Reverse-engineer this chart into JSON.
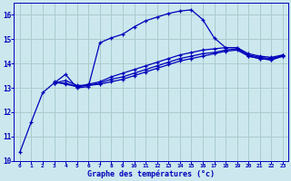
{
  "xlabel": "Graphe des températures (°c)",
  "background_color": "#cce8ee",
  "grid_color": "#aacccc",
  "line_color": "#0000bb",
  "ylim": [
    10,
    16.5
  ],
  "xlim": [
    -0.5,
    23.5
  ],
  "yticks": [
    10,
    11,
    12,
    13,
    14,
    15,
    16
  ],
  "xticks": [
    0,
    1,
    2,
    3,
    4,
    5,
    6,
    7,
    8,
    9,
    10,
    11,
    12,
    13,
    14,
    15,
    16,
    17,
    18,
    19,
    20,
    21,
    22,
    23
  ],
  "series": [
    {
      "x": [
        0,
        1,
        2,
        3,
        4,
        5,
        6,
        7,
        8,
        9,
        10,
        11,
        12,
        13,
        14,
        15,
        16,
        17,
        18,
        19,
        20,
        21,
        22,
        23
      ],
      "y": [
        10.35,
        11.6,
        12.8,
        13.2,
        13.55,
        13.0,
        13.05,
        14.85,
        15.05,
        15.2,
        15.5,
        15.75,
        15.9,
        16.05,
        16.15,
        16.2,
        15.8,
        15.05,
        14.65,
        14.65,
        14.3,
        14.2,
        14.15,
        14.3
      ],
      "marker": "+"
    },
    {
      "x": [
        3,
        4,
        5,
        6,
        7,
        8,
        9,
        10,
        11,
        12,
        13,
        14,
        15,
        16,
        17,
        18,
        19,
        20,
        21,
        22,
        23
      ],
      "y": [
        13.2,
        13.3,
        13.1,
        13.1,
        13.15,
        13.25,
        13.35,
        13.5,
        13.65,
        13.8,
        13.95,
        14.1,
        14.2,
        14.3,
        14.4,
        14.5,
        14.55,
        14.3,
        14.2,
        14.15,
        14.3
      ],
      "marker": "+"
    },
    {
      "x": [
        3,
        4,
        5,
        6,
        7,
        8,
        9,
        10,
        11,
        12,
        13,
        14,
        15,
        16,
        17,
        18,
        19,
        20,
        21,
        22,
        23
      ],
      "y": [
        13.2,
        13.2,
        13.05,
        13.1,
        13.2,
        13.35,
        13.45,
        13.6,
        13.75,
        13.9,
        14.05,
        14.2,
        14.3,
        14.4,
        14.45,
        14.55,
        14.6,
        14.35,
        14.25,
        14.2,
        14.33
      ],
      "marker": "+"
    },
    {
      "x": [
        3,
        4,
        5,
        6,
        7,
        8,
        9,
        10,
        11,
        12,
        13,
        14,
        15,
        16,
        17,
        18,
        19,
        20,
        21,
        22,
        23
      ],
      "y": [
        13.25,
        13.15,
        13.05,
        13.15,
        13.25,
        13.45,
        13.6,
        13.75,
        13.9,
        14.05,
        14.2,
        14.35,
        14.45,
        14.55,
        14.6,
        14.65,
        14.65,
        14.4,
        14.3,
        14.25,
        14.35
      ],
      "marker": "+"
    }
  ]
}
